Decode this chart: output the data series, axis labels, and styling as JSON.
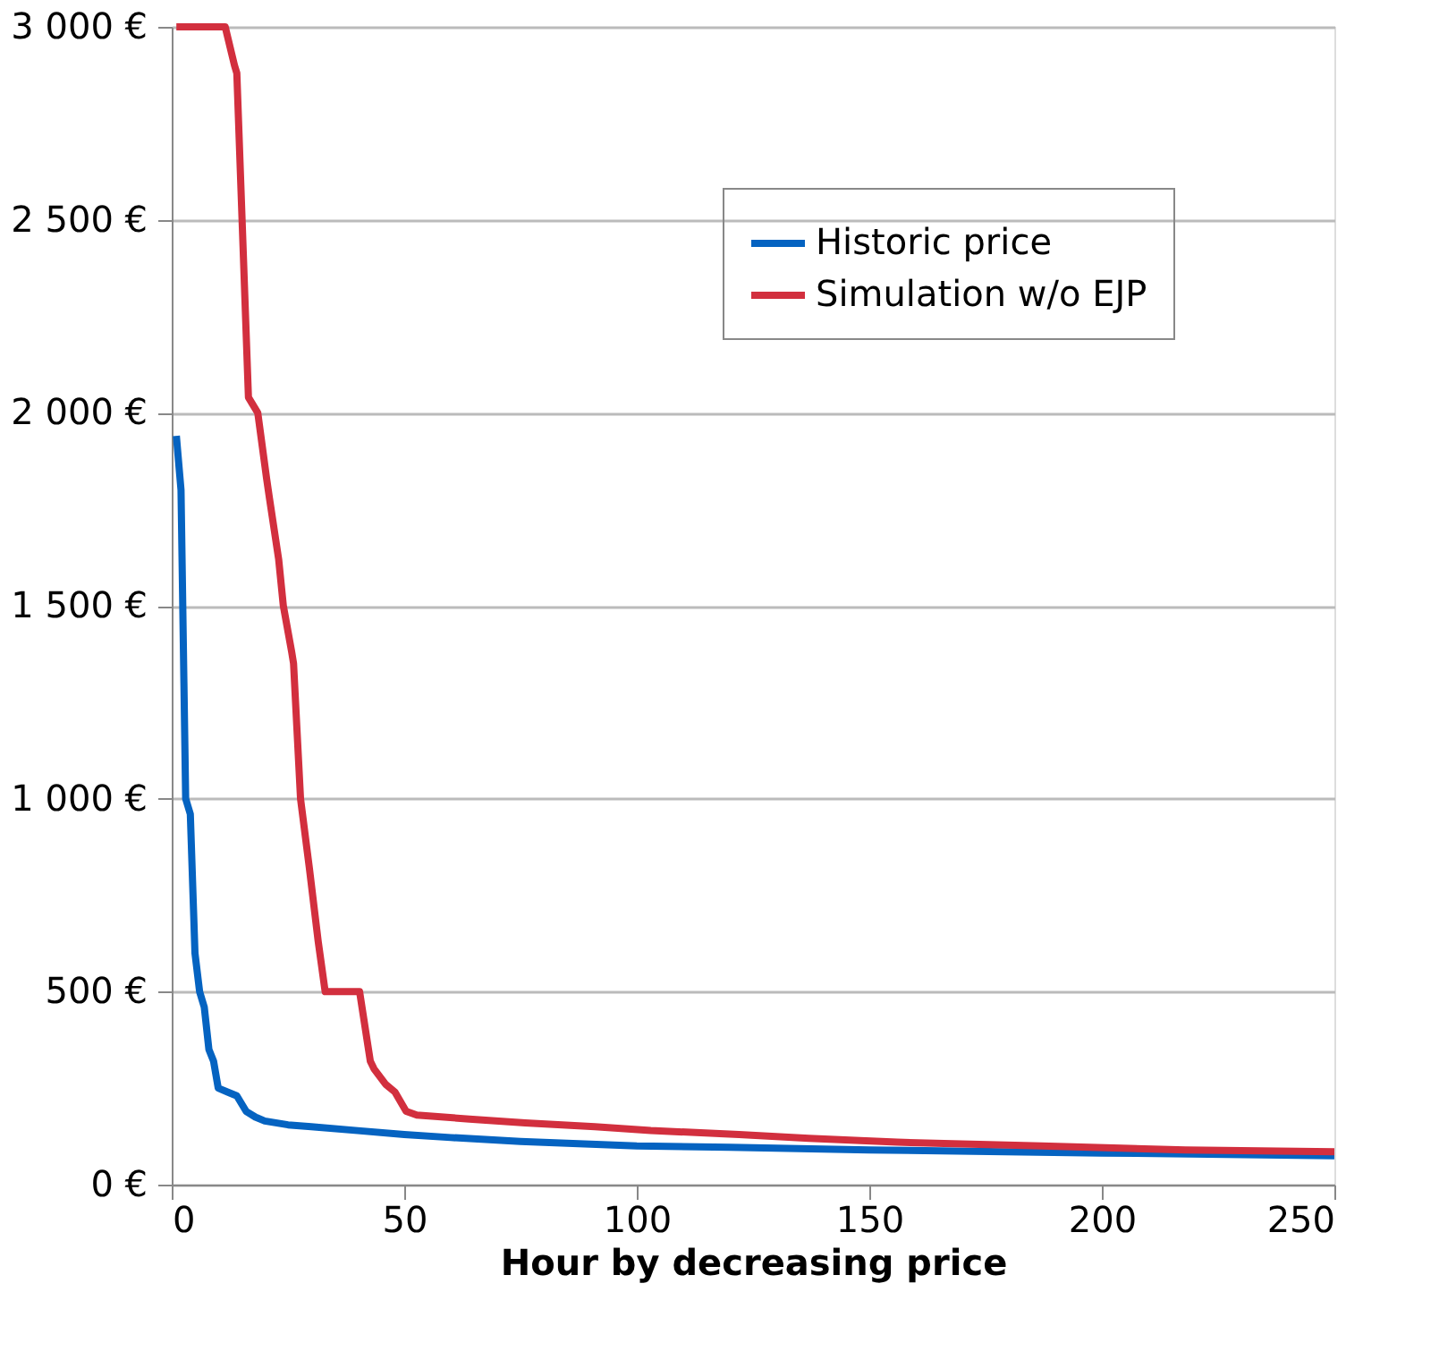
{
  "chart_data": {
    "type": "line",
    "xlabel": "Hour by decreasing price",
    "xlim": [
      0,
      250
    ],
    "xticks": [
      0,
      50,
      100,
      150,
      200,
      250
    ],
    "ylim": [
      0,
      3000
    ],
    "yticks": [
      {
        "value": 0,
        "label": "0 €"
      },
      {
        "value": 500,
        "label": "500 €"
      },
      {
        "value": 1000,
        "label": "1 000 €"
      },
      {
        "value": 1500,
        "label": "1 500 €"
      },
      {
        "value": 2000,
        "label": "2 000 €"
      },
      {
        "value": 2500,
        "label": "2 500 €"
      },
      {
        "value": 3000,
        "label": "3 000 €"
      }
    ],
    "grid": "y",
    "legend": "top right",
    "marker": "none",
    "line_style": "solid",
    "series": [
      {
        "name": "Historic price",
        "color": "#0563c1",
        "x": [
          1,
          2,
          3,
          4,
          5,
          6,
          7,
          8,
          9,
          10,
          12,
          14,
          16,
          18,
          20,
          25,
          30,
          40,
          50,
          60,
          75,
          100,
          120,
          150,
          200,
          250
        ],
        "values": [
          1940,
          1800,
          1000,
          960,
          600,
          500,
          460,
          350,
          320,
          250,
          240,
          230,
          190,
          175,
          165,
          155,
          150,
          140,
          130,
          122,
          112,
          100,
          97,
          90,
          82,
          75
        ]
      },
      {
        "name": "Simulation w/o EJP",
        "color": "#d22f3e",
        "x": [
          1,
          11.5,
          13.5,
          14,
          16.5,
          18.5,
          20.4,
          21,
          23,
          24,
          25.8,
          26.2,
          27.7,
          29.6,
          30,
          31.5,
          33,
          40.4,
          42.7,
          43.5,
          46,
          48,
          50.4,
          52.7,
          64,
          76,
          91,
          103,
          122,
          137,
          156,
          187,
          218,
          250
        ],
        "values": [
          3000,
          3000,
          2900,
          2880,
          2040,
          2000,
          1830,
          1780,
          1620,
          1500,
          1380,
          1350,
          1000,
          820,
          780,
          630,
          500,
          500,
          320,
          300,
          260,
          240,
          190,
          180,
          170,
          160,
          150,
          140,
          130,
          120,
          110,
          100,
          90,
          85
        ]
      }
    ]
  }
}
